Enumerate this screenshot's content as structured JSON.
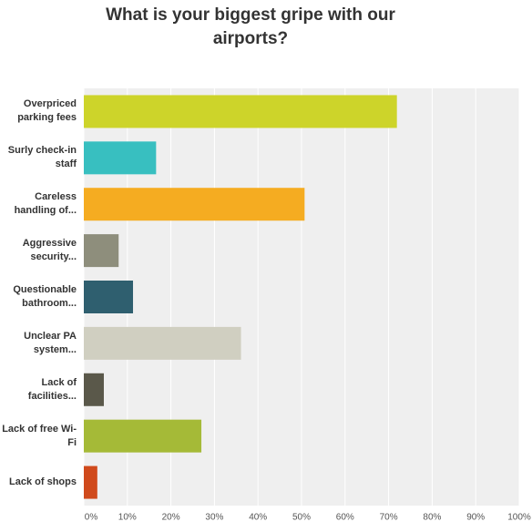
{
  "chart_data": {
    "type": "bar",
    "orientation": "horizontal",
    "title": "What is your biggest gripe with our airports?",
    "categories": [
      "Overpriced parking fees",
      "Surly check-in staff",
      "Careless handling of...",
      "Aggressive security...",
      "Questionable bathroom...",
      "Unclear PA system...",
      "Lack of facilities...",
      "Lack of free Wi-Fi",
      "Lack of shops"
    ],
    "values": [
      71.9,
      16.6,
      50.7,
      8.0,
      11.3,
      36.1,
      4.6,
      27.0,
      3.1
    ],
    "colors": [
      "#cdd42a",
      "#38bfc0",
      "#f5ac21",
      "#8e8e7c",
      "#2f5f6f",
      "#d0cfc1",
      "#5a584a",
      "#a5ba37",
      "#d04a1c"
    ],
    "xlim": [
      0,
      100
    ],
    "xticks": [
      {
        "value": 0,
        "label": "0%"
      },
      {
        "value": 10,
        "label": "10%"
      },
      {
        "value": 20,
        "label": "20%"
      },
      {
        "value": 30,
        "label": "30%"
      },
      {
        "value": 40,
        "label": "40%"
      },
      {
        "value": 50,
        "label": "50%"
      },
      {
        "value": 60,
        "label": "60%"
      },
      {
        "value": 70,
        "label": "70%"
      },
      {
        "value": 80,
        "label": "80%"
      },
      {
        "value": 90,
        "label": "90%"
      },
      {
        "value": 100,
        "label": "100%"
      }
    ],
    "grid": true
  }
}
